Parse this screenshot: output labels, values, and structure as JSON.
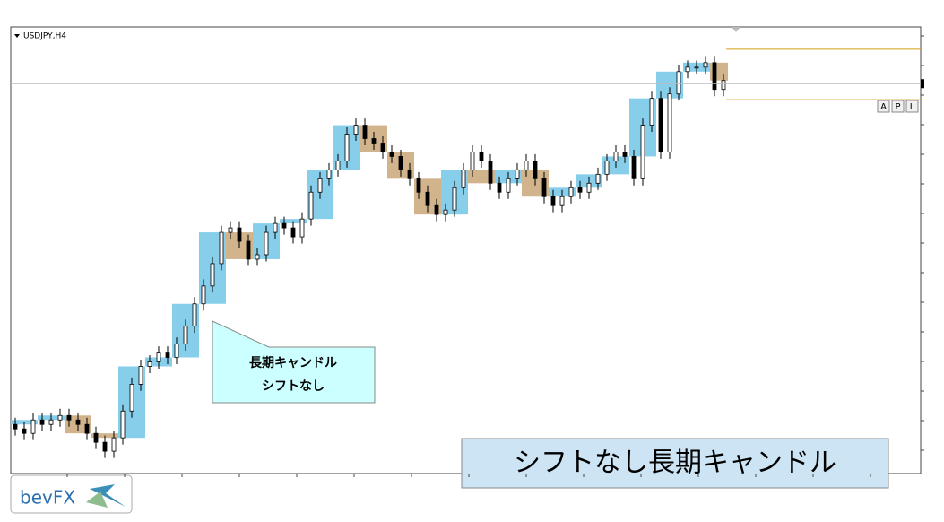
{
  "chart_data": {
    "type": "candlestick",
    "symbol": "USDJPY,H4",
    "ylim": [
      0,
      100
    ],
    "open": [
      11,
      10,
      9,
      12,
      11,
      12,
      13,
      12,
      11,
      9,
      7,
      5,
      8,
      14,
      20,
      24,
      25,
      27,
      26,
      29,
      33,
      38,
      42,
      47,
      54,
      55,
      52,
      48,
      49,
      54,
      56,
      55,
      53,
      57,
      63,
      66,
      68,
      70,
      76,
      78,
      75,
      74,
      72,
      71,
      68,
      66,
      63,
      60,
      58,
      59,
      64,
      68,
      72,
      70,
      65,
      63,
      66,
      68,
      70,
      66,
      62,
      60,
      62,
      64,
      63,
      65,
      67,
      70,
      72,
      71,
      66,
      78,
      84,
      72,
      85,
      90,
      91,
      91,
      92,
      86
    ],
    "high": [
      12.5,
      11.5,
      13.5,
      13.5,
      13.5,
      14.5,
      14.5,
      13.5,
      12.5,
      10.5,
      8.5,
      9.5,
      15.5,
      21.5,
      25.5,
      26.5,
      28.5,
      28.5,
      30.5,
      34.5,
      39.5,
      43.5,
      48.5,
      55.5,
      56.5,
      56.5,
      53.5,
      50.5,
      55.5,
      57.5,
      57.5,
      56.5,
      58.5,
      64.5,
      67.5,
      69.5,
      71.5,
      77.5,
      79.5,
      79.5,
      76.5,
      75.5,
      73.5,
      72.5,
      69.5,
      67.5,
      64.5,
      61.5,
      60.5,
      65.5,
      69.5,
      73.5,
      73.5,
      71.5,
      66.5,
      67.5,
      69.5,
      71.5,
      71.5,
      67.5,
      63.5,
      63.5,
      65.5,
      65.5,
      66.5,
      68.5,
      71.5,
      73.5,
      73.5,
      72.5,
      79.5,
      85.5,
      85.5,
      86.5,
      91.5,
      92.5,
      92.5,
      93.5,
      93.5,
      89.5
    ],
    "low": [
      8.5,
      7.5,
      7.5,
      9.5,
      9.5,
      10.5,
      10.5,
      9.5,
      7.5,
      5.5,
      3.5,
      3.5,
      6.5,
      12.5,
      18.5,
      22.5,
      23.5,
      24.5,
      24.5,
      27.5,
      31.5,
      36.5,
      40.5,
      45.5,
      52.5,
      50.5,
      46.5,
      46.5,
      47.5,
      52.5,
      53.5,
      51.5,
      51.5,
      55.5,
      61.5,
      64.5,
      66.5,
      68.5,
      74.5,
      73.5,
      72.5,
      70.5,
      69.5,
      66.5,
      64.5,
      61.5,
      58.5,
      56.5,
      56.5,
      57.5,
      62.5,
      66.5,
      68.5,
      63.5,
      61.5,
      61.5,
      64.5,
      66.5,
      64.5,
      60.5,
      58.5,
      58.5,
      60.5,
      61.5,
      61.5,
      63.5,
      65.5,
      68.5,
      69.5,
      64.5,
      64.5,
      76.5,
      70.5,
      70.5,
      83.5,
      88.5,
      89.5,
      89.5,
      84.5,
      84.5
    ],
    "close": [
      10,
      9,
      12,
      11,
      12,
      13,
      12,
      11,
      9,
      7,
      5,
      8,
      14,
      20,
      24,
      25,
      27,
      26,
      29,
      33,
      38,
      42,
      47,
      54,
      55,
      52,
      48,
      49,
      54,
      56,
      55,
      53,
      57,
      63,
      66,
      68,
      70,
      76,
      78,
      75,
      74,
      72,
      71,
      68,
      66,
      63,
      60,
      58,
      59,
      64,
      68,
      72,
      70,
      65,
      63,
      66,
      68,
      70,
      66,
      62,
      60,
      62,
      64,
      63,
      65,
      67,
      70,
      72,
      71,
      66,
      78,
      84,
      72,
      85,
      90,
      91,
      91,
      92,
      86,
      88
    ],
    "long_open": [
      11,
      12,
      13,
      9,
      8,
      24,
      26,
      38,
      54,
      48,
      56,
      57,
      68,
      78,
      72,
      66,
      58,
      68,
      65,
      68,
      62,
      64,
      67,
      71,
      84,
      90,
      92
    ],
    "long_close": [
      12,
      13,
      9,
      8,
      24,
      26,
      38,
      54,
      48,
      56,
      57,
      68,
      78,
      72,
      66,
      58,
      68,
      65,
      68,
      62,
      64,
      67,
      71,
      84,
      90,
      92,
      88
    ],
    "up_color": "#87ceeb",
    "down_color": "#d2b48c",
    "price_line": 87.3,
    "range_lines": [
      95,
      83.7
    ],
    "range_color": "#d4a017"
  },
  "buttons": [
    "A",
    "P",
    "L"
  ],
  "callout": [
    "長期キャンドル",
    "シフトなし"
  ],
  "banner": "シフトなし長期キャンドル",
  "logo": "bevFX"
}
